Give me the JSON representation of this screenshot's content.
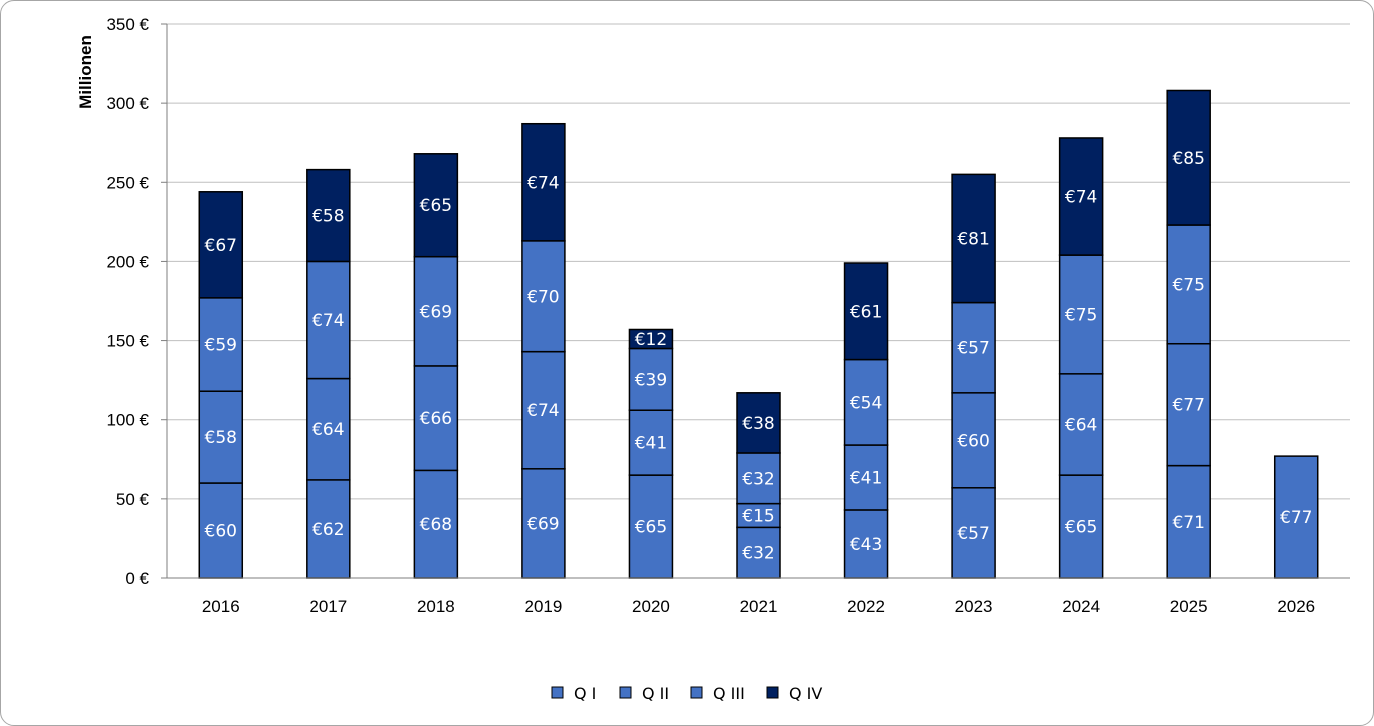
{
  "chart_data": {
    "type": "bar",
    "stacked": true,
    "title": "",
    "xlabel": "",
    "ylabel": "Millionen",
    "ylim": [
      0,
      350
    ],
    "y_ticks": [
      0,
      50,
      100,
      150,
      200,
      250,
      300,
      350
    ],
    "y_tick_labels": [
      "0 €",
      "50 €",
      "100 €",
      "150 €",
      "200 €",
      "250 €",
      "300 €",
      "350 €"
    ],
    "grid": true,
    "legend_position": "bottom",
    "categories": [
      "2016",
      "2017",
      "2018",
      "2019",
      "2020",
      "2021",
      "2022",
      "2023",
      "2024",
      "2025",
      "2026"
    ],
    "series": [
      {
        "name": "Q I",
        "color": "#4472c4",
        "values": [
          60,
          62,
          68,
          69,
          65,
          32,
          43,
          57,
          65,
          71,
          77
        ],
        "labels": [
          "€60",
          "€62",
          "€68",
          "€69",
          "€65",
          "€32",
          "€43",
          "€57",
          "€65",
          "€71",
          "€77"
        ]
      },
      {
        "name": "Q II",
        "color": "#4472c4",
        "values": [
          58,
          64,
          66,
          74,
          41,
          15,
          41,
          60,
          64,
          77,
          null
        ],
        "labels": [
          "€58",
          "€64",
          "€66",
          "€74",
          "€41",
          "€15",
          "€41",
          "€60",
          "€64",
          "€77",
          null
        ]
      },
      {
        "name": "Q III",
        "color": "#4472c4",
        "values": [
          59,
          74,
          69,
          70,
          39,
          32,
          54,
          57,
          75,
          75,
          null
        ],
        "labels": [
          "€59",
          "€74",
          "€69",
          "€70",
          "€39",
          "€32",
          "€54",
          "€57",
          "€75",
          "€75",
          null
        ]
      },
      {
        "name": "Q IV",
        "color": "#002060",
        "values": [
          67,
          58,
          65,
          74,
          12,
          38,
          61,
          81,
          74,
          85,
          null
        ],
        "labels": [
          "€67",
          "€58",
          "€65",
          "€74",
          "€12",
          "€38",
          "€61",
          "€81",
          "€74",
          "€85",
          null
        ]
      }
    ]
  }
}
